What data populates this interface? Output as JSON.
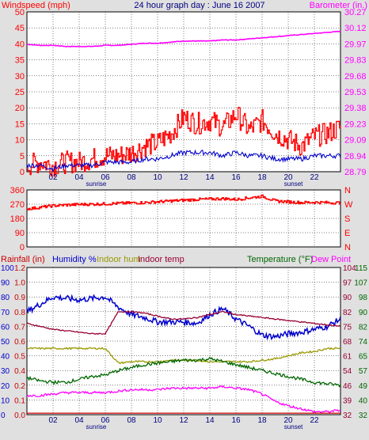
{
  "colors": {
    "background": "#e0e0e0",
    "plot": "#ffffff",
    "grid": "#000000",
    "red": "#ff0000",
    "blue": "#0000cc",
    "magenta": "#ff00ff",
    "olive": "#999900",
    "maroon": "#990033",
    "green": "#006600",
    "darkred": "#cc0000"
  },
  "x_ticks": [
    "02",
    "04",
    "06",
    "08",
    "10",
    "12",
    "14",
    "16",
    "18",
    "20",
    "22"
  ],
  "sunrise_label": "sunrise",
  "sunset_label": "sunset",
  "chart_data": [
    {
      "type": "line",
      "title": "24 hour graph day : June 16 2007",
      "ylabel_left": "Windspeed (mph)",
      "ylabel_right": "Barometer (in.)",
      "left_ticks": [
        "0",
        "5",
        "10",
        "15",
        "20",
        "25",
        "30",
        "35",
        "40",
        "45",
        "50"
      ],
      "right_ticks": [
        "28.79",
        "28.94",
        "29.09",
        "29.23",
        "29.38",
        "29.53",
        "29.68",
        "29.83",
        "29.97",
        "30.12",
        "30.27"
      ],
      "ylim_left": [
        0,
        50
      ],
      "ylim_right": [
        28.79,
        30.27
      ],
      "grid": true,
      "x_hours": [
        0,
        1,
        2,
        3,
        4,
        5,
        6,
        7,
        8,
        9,
        10,
        11,
        12,
        13,
        14,
        15,
        16,
        17,
        18,
        19,
        20,
        21,
        22,
        23,
        24
      ],
      "series": [
        {
          "color": "#ff00ff",
          "axis": "right",
          "values": [
            29.97,
            29.96,
            29.96,
            29.95,
            29.95,
            29.95,
            29.96,
            29.96,
            29.97,
            29.98,
            29.98,
            29.99,
            30.0,
            30.0,
            30.0,
            30.01,
            30.01,
            30.02,
            30.03,
            30.04,
            30.05,
            30.06,
            30.07,
            30.08,
            30.09
          ]
        },
        {
          "color": "#ff0000",
          "axis": "left",
          "values": [
            2,
            3,
            2,
            3,
            3,
            4,
            5,
            5,
            6,
            8,
            9,
            12,
            17,
            15,
            16,
            14,
            18,
            13,
            16,
            12,
            10,
            8,
            11,
            12,
            14
          ]
        },
        {
          "color": "#0000cc",
          "axis": "left",
          "values": [
            2,
            2,
            1,
            2,
            2,
            2,
            3,
            3,
            3,
            4,
            4,
            5,
            6,
            6,
            6,
            5,
            6,
            5,
            5,
            4,
            4,
            4,
            5,
            5,
            5
          ]
        }
      ]
    },
    {
      "type": "line",
      "ylabel_left": "",
      "left_ticks": [
        "0",
        "90",
        "180",
        "270",
        "360"
      ],
      "right_ticks": [
        "N",
        "W",
        "S",
        "E",
        "N"
      ],
      "ylim_left": [
        0,
        360
      ],
      "grid": true,
      "x_hours": [
        0,
        1,
        2,
        3,
        4,
        5,
        6,
        7,
        8,
        9,
        10,
        11,
        12,
        13,
        14,
        15,
        16,
        17,
        18,
        19,
        20,
        21,
        22,
        23,
        24
      ],
      "series": [
        {
          "color": "#ff0000",
          "axis": "left",
          "values": [
            240,
            250,
            260,
            265,
            268,
            270,
            272,
            275,
            278,
            280,
            285,
            290,
            295,
            300,
            302,
            305,
            300,
            310,
            320,
            290,
            285,
            280,
            282,
            280,
            278
          ]
        }
      ]
    },
    {
      "type": "line",
      "legend": [
        {
          "label": "Rainfall (in)",
          "color": "#cc0000"
        },
        {
          "label": "Humidity %",
          "color": "#0000cc"
        },
        {
          "label": "Indoor hum",
          "color": "#999900"
        },
        {
          "label": "Indoor temp",
          "color": "#990033"
        },
        {
          "label": "Temperature (°F)",
          "color": "#006600"
        },
        {
          "label": "Dew Point",
          "color": "#ff00ff"
        }
      ],
      "left_ticks_humidity": [
        "0",
        "10",
        "20",
        "30",
        "40",
        "50",
        "60",
        "70",
        "80",
        "90",
        "100"
      ],
      "left_ticks_rain": [
        "0.0",
        "0.1",
        "0.2",
        "0.4",
        "0.5",
        "0.6",
        "0.7",
        "0.8",
        "0.9",
        "1.0",
        "1.2"
      ],
      "right_ticks_inner": [
        "32",
        "39",
        "46",
        "54",
        "61",
        "68",
        "75",
        "82",
        "90",
        "97",
        "104"
      ],
      "right_ticks_outer": [
        "32",
        "40",
        "49",
        "57",
        "65",
        "74",
        "82",
        "90",
        "98",
        "107",
        "115"
      ],
      "ylim_humidity": [
        0,
        100
      ],
      "ylim_temperature": [
        32,
        115
      ],
      "grid": true,
      "x_hours": [
        0,
        1,
        2,
        3,
        4,
        5,
        6,
        7,
        8,
        9,
        10,
        11,
        12,
        13,
        14,
        15,
        16,
        17,
        18,
        19,
        20,
        21,
        22,
        23,
        24
      ],
      "series": [
        {
          "name": "Humidity %",
          "color": "#0000cc",
          "axis": "humidity",
          "values": [
            70,
            75,
            80,
            79,
            78,
            79,
            80,
            73,
            68,
            66,
            63,
            63,
            63,
            62,
            68,
            72,
            65,
            60,
            54,
            53,
            55,
            56,
            58,
            60,
            65
          ]
        },
        {
          "name": "Indoor hum",
          "color": "#999900",
          "axis": "humidity",
          "values": [
            45,
            45,
            45,
            45,
            45,
            45,
            45,
            35,
            36,
            36,
            36,
            37,
            37,
            37,
            36,
            36,
            36,
            36,
            37,
            38,
            40,
            42,
            43,
            45,
            45
          ]
        },
        {
          "name": "Indoor temp",
          "color": "#990033",
          "axis": "humidity",
          "values": [
            62,
            60,
            58,
            57,
            56,
            55,
            55,
            70,
            70,
            69,
            67,
            65,
            65,
            66,
            68,
            70,
            68,
            67,
            66,
            65,
            64,
            63,
            62,
            61,
            60
          ]
        },
        {
          "name": "Temperature (°F)",
          "color": "#006600",
          "axis": "humidity",
          "values": [
            25,
            23,
            22,
            22,
            24,
            26,
            27,
            30,
            32,
            34,
            35,
            36,
            37,
            37,
            38,
            36,
            34,
            32,
            30,
            28,
            26,
            24,
            22,
            21,
            20
          ]
        },
        {
          "name": "Dew Point",
          "color": "#ff00ff",
          "axis": "humidity",
          "values": [
            13,
            13,
            14,
            15,
            15,
            15,
            15,
            16,
            17,
            17,
            17,
            18,
            18,
            18,
            18,
            19,
            18,
            17,
            14,
            9,
            6,
            4,
            2,
            2,
            3
          ]
        },
        {
          "name": "Rainfall (in)",
          "color": "#cc0000",
          "axis": "humidity",
          "values": [
            1,
            1,
            1,
            1,
            1,
            1,
            1,
            1,
            1,
            1,
            1,
            1,
            1,
            1,
            1,
            1,
            1,
            1,
            1,
            1,
            1,
            1,
            1,
            1,
            1
          ]
        }
      ]
    }
  ]
}
